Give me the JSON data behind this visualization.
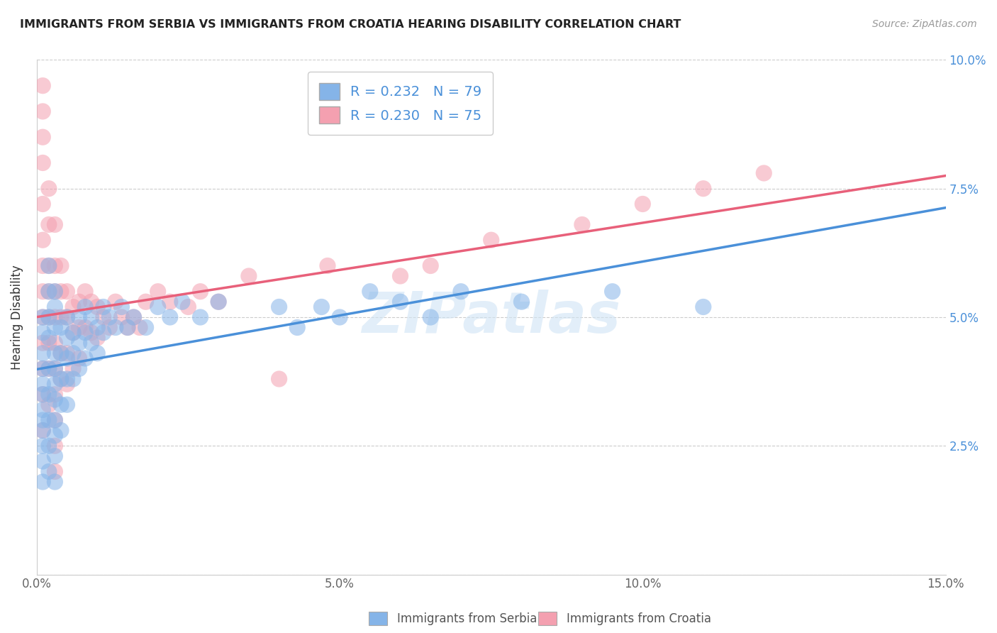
{
  "title": "IMMIGRANTS FROM SERBIA VS IMMIGRANTS FROM CROATIA HEARING DISABILITY CORRELATION CHART",
  "source": "Source: ZipAtlas.com",
  "ylabel": "Hearing Disability",
  "x_min": 0.0,
  "x_max": 0.15,
  "y_min": 0.0,
  "y_max": 0.1,
  "x_ticks": [
    0.0,
    0.05,
    0.1,
    0.15
  ],
  "x_tick_labels": [
    "0.0%",
    "5.0%",
    "10.0%",
    "15.0%"
  ],
  "y_ticks": [
    0.0,
    0.025,
    0.05,
    0.075,
    0.1
  ],
  "y_tick_labels": [
    "",
    "2.5%",
    "5.0%",
    "7.5%",
    "10.0%"
  ],
  "serbia_color": "#85b4e8",
  "croatia_color": "#f4a0b0",
  "serbia_R": 0.232,
  "serbia_N": 79,
  "croatia_R": 0.23,
  "croatia_N": 75,
  "serbia_line_color": "#4a90d9",
  "croatia_line_color": "#e8607a",
  "watermark": "ZIPatlas",
  "legend_labels": [
    "Immigrants from Serbia",
    "Immigrants from Croatia"
  ],
  "serbia_points_x": [
    0.001,
    0.001,
    0.001,
    0.001,
    0.001,
    0.001,
    0.001,
    0.001,
    0.001,
    0.001,
    0.001,
    0.001,
    0.002,
    0.002,
    0.002,
    0.002,
    0.002,
    0.002,
    0.002,
    0.002,
    0.002,
    0.003,
    0.003,
    0.003,
    0.003,
    0.003,
    0.003,
    0.003,
    0.003,
    0.003,
    0.003,
    0.003,
    0.004,
    0.004,
    0.004,
    0.004,
    0.004,
    0.005,
    0.005,
    0.005,
    0.005,
    0.005,
    0.006,
    0.006,
    0.006,
    0.007,
    0.007,
    0.007,
    0.008,
    0.008,
    0.008,
    0.009,
    0.009,
    0.01,
    0.01,
    0.011,
    0.011,
    0.012,
    0.013,
    0.014,
    0.015,
    0.016,
    0.018,
    0.02,
    0.022,
    0.024,
    0.027,
    0.03,
    0.04,
    0.043,
    0.047,
    0.05,
    0.055,
    0.06,
    0.065,
    0.07,
    0.08,
    0.095,
    0.11
  ],
  "serbia_points_y": [
    0.05,
    0.047,
    0.043,
    0.04,
    0.037,
    0.035,
    0.032,
    0.03,
    0.028,
    0.025,
    0.022,
    0.018,
    0.06,
    0.055,
    0.05,
    0.046,
    0.04,
    0.035,
    0.03,
    0.025,
    0.02,
    0.055,
    0.052,
    0.048,
    0.043,
    0.04,
    0.037,
    0.034,
    0.03,
    0.027,
    0.023,
    0.018,
    0.048,
    0.043,
    0.038,
    0.033,
    0.028,
    0.05,
    0.046,
    0.042,
    0.038,
    0.033,
    0.047,
    0.043,
    0.038,
    0.05,
    0.045,
    0.04,
    0.052,
    0.047,
    0.042,
    0.05,
    0.045,
    0.048,
    0.043,
    0.052,
    0.047,
    0.05,
    0.048,
    0.052,
    0.048,
    0.05,
    0.048,
    0.052,
    0.05,
    0.053,
    0.05,
    0.053,
    0.052,
    0.048,
    0.052,
    0.05,
    0.055,
    0.053,
    0.05,
    0.055,
    0.053,
    0.055,
    0.052
  ],
  "croatia_points_x": [
    0.001,
    0.001,
    0.001,
    0.001,
    0.001,
    0.001,
    0.001,
    0.001,
    0.001,
    0.001,
    0.001,
    0.001,
    0.001,
    0.002,
    0.002,
    0.002,
    0.002,
    0.002,
    0.002,
    0.002,
    0.002,
    0.003,
    0.003,
    0.003,
    0.003,
    0.003,
    0.003,
    0.003,
    0.003,
    0.003,
    0.003,
    0.004,
    0.004,
    0.004,
    0.004,
    0.004,
    0.005,
    0.005,
    0.005,
    0.005,
    0.006,
    0.006,
    0.006,
    0.007,
    0.007,
    0.007,
    0.008,
    0.008,
    0.009,
    0.009,
    0.01,
    0.01,
    0.011,
    0.012,
    0.013,
    0.014,
    0.015,
    0.016,
    0.017,
    0.018,
    0.02,
    0.022,
    0.025,
    0.027,
    0.03,
    0.035,
    0.04,
    0.048,
    0.06,
    0.065,
    0.075,
    0.09,
    0.1,
    0.11,
    0.12
  ],
  "croatia_points_y": [
    0.095,
    0.09,
    0.085,
    0.08,
    0.072,
    0.065,
    0.06,
    0.055,
    0.05,
    0.045,
    0.04,
    0.035,
    0.028,
    0.075,
    0.068,
    0.06,
    0.055,
    0.05,
    0.045,
    0.04,
    0.033,
    0.068,
    0.06,
    0.055,
    0.05,
    0.045,
    0.04,
    0.035,
    0.03,
    0.025,
    0.02,
    0.06,
    0.055,
    0.05,
    0.043,
    0.038,
    0.055,
    0.05,
    0.043,
    0.037,
    0.052,
    0.047,
    0.04,
    0.053,
    0.048,
    0.042,
    0.055,
    0.048,
    0.053,
    0.047,
    0.052,
    0.046,
    0.05,
    0.048,
    0.053,
    0.05,
    0.048,
    0.05,
    0.048,
    0.053,
    0.055,
    0.053,
    0.052,
    0.055,
    0.053,
    0.058,
    0.038,
    0.06,
    0.058,
    0.06,
    0.065,
    0.068,
    0.072,
    0.075,
    0.078
  ]
}
